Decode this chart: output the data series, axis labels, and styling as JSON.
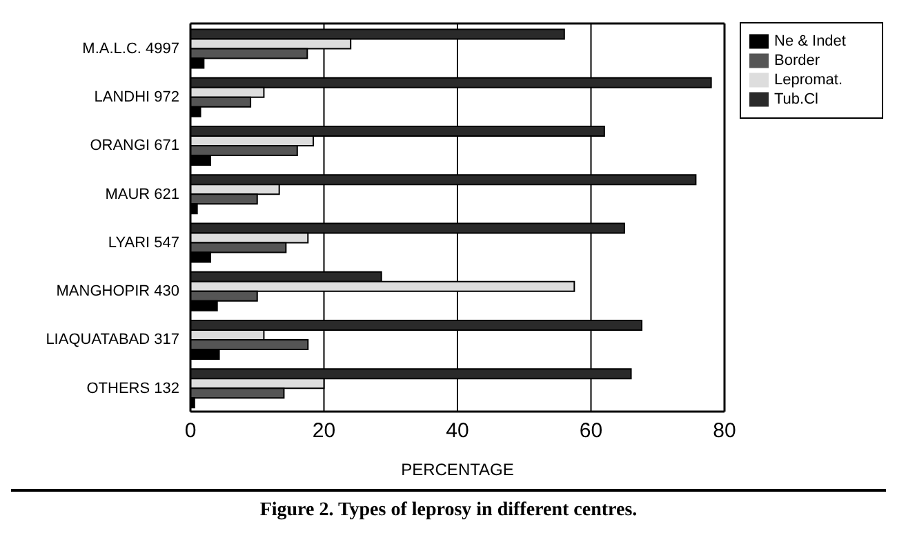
{
  "chart_data": {
    "type": "bar",
    "orientation": "horizontal",
    "title": "Figure 2. Types of leprosy in different centres.",
    "xlabel": "PERCENTAGE",
    "categories": [
      "M.A.L.C.   4997",
      "LANDHI   972",
      "ORANGI   671",
      "MAUR   621",
      "LYARI   547",
      "MANGHOPIR   430",
      "LIAQUATABAD 317",
      "OTHERS   132"
    ],
    "series": [
      {
        "name": "Ne & Indet",
        "color": "#000000",
        "values": [
          2,
          1.5,
          3,
          1,
          3,
          4,
          4.3,
          0.6
        ]
      },
      {
        "name": "Border",
        "color": "#555555",
        "values": [
          17.5,
          9,
          16,
          10,
          14.3,
          10,
          17.6,
          14
        ]
      },
      {
        "name": "Lepromat.",
        "color": "#dddddd",
        "values": [
          24,
          11,
          18.4,
          13.3,
          17.6,
          57.5,
          11,
          20
        ]
      },
      {
        "name": "Tub.Cl",
        "color": "#2a2a2a",
        "values": [
          56,
          78,
          62,
          75.7,
          65,
          28.6,
          67.6,
          66
        ]
      }
    ],
    "xlim": [
      0,
      80
    ],
    "xticks": [
      0,
      20,
      40,
      60,
      80
    ],
    "grid": "x",
    "legend": "top right"
  }
}
